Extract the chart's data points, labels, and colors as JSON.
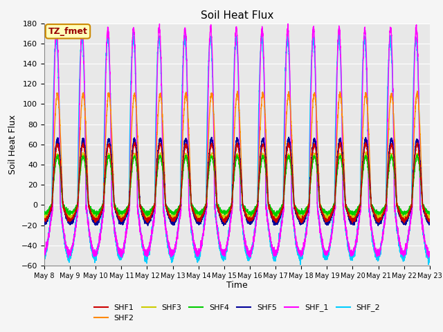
{
  "title": "Soil Heat Flux",
  "ylabel": "Soil Heat Flux",
  "xlabel": "Time",
  "ylim": [
    -60,
    180
  ],
  "yticks": [
    -60,
    -40,
    -20,
    0,
    20,
    40,
    60,
    80,
    100,
    120,
    140,
    160,
    180
  ],
  "xtick_labels": [
    "May 8",
    "May 9",
    "May 10",
    "May 11",
    "May 12",
    "May 13",
    "May 14",
    "May 15",
    "May 16",
    "May 17",
    "May 18",
    "May 19",
    "May 20",
    "May 21",
    "May 22",
    "May 23"
  ],
  "series": {
    "SHF1": {
      "color": "#cc0000",
      "lw": 1.0
    },
    "SHF2": {
      "color": "#ff8800",
      "lw": 1.0
    },
    "SHF3": {
      "color": "#cccc00",
      "lw": 1.0
    },
    "SHF4": {
      "color": "#00cc00",
      "lw": 1.0
    },
    "SHF5": {
      "color": "#000099",
      "lw": 1.2
    },
    "SHF_1": {
      "color": "#ff00ff",
      "lw": 1.0
    },
    "SHF_2": {
      "color": "#00ccff",
      "lw": 1.2
    }
  },
  "annotation_text": "TZ_fmet",
  "annotation_color": "#990000",
  "annotation_bg": "#ffffbb",
  "annotation_border": "#cc8800",
  "plot_bg": "#e8e8e8",
  "fig_bg": "#f5f5f5",
  "grid_color": "#ffffff",
  "num_days": 15,
  "pts_per_day": 288,
  "shf1_peak": 60,
  "shf1_trough": 15,
  "shf2_peak": 110,
  "shf2_trough": 15,
  "shf3_peak": 50,
  "shf3_trough": 12,
  "shf4_peak": 48,
  "shf4_trough": 8,
  "shf5_peak": 65,
  "shf5_trough": 18,
  "shf_1_peak": 175,
  "shf_1_trough": 48,
  "shf_2_peak": 165,
  "shf_2_trough": 52
}
